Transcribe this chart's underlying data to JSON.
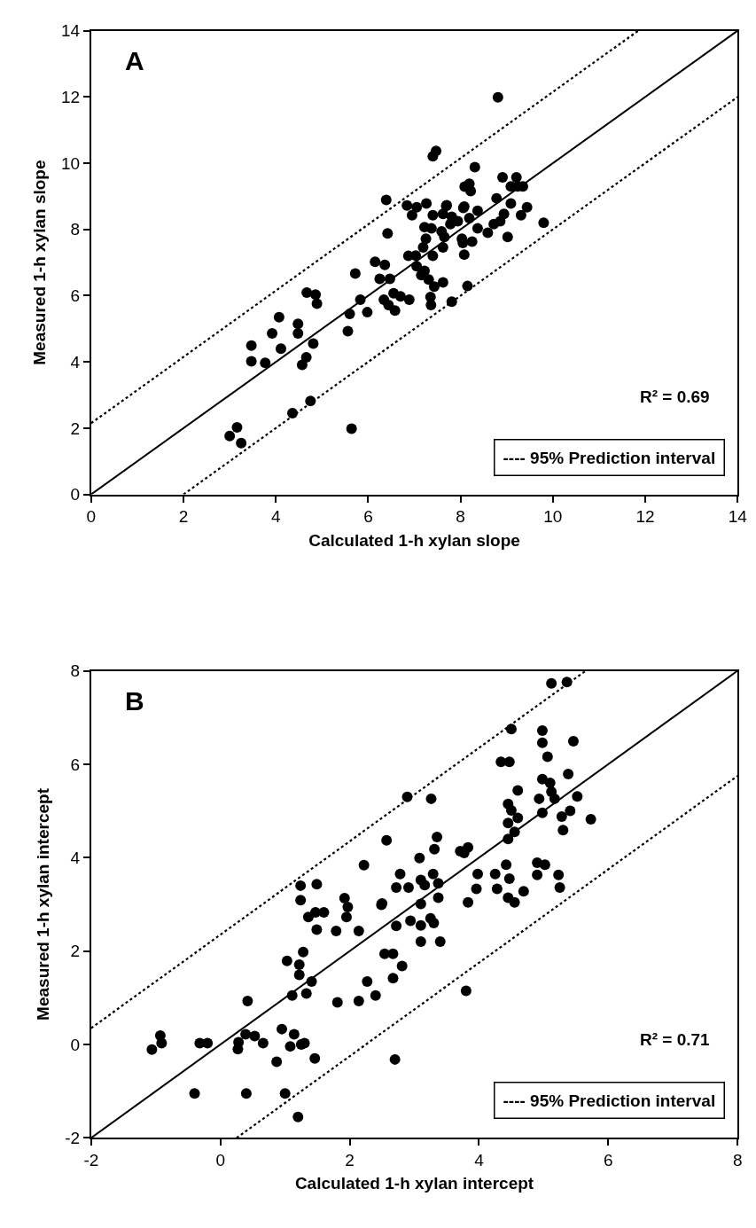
{
  "chart_data": [
    {
      "type": "scatter",
      "xlabel": "Calculated 1-h xylan slope",
      "ylabel": "Measured 1-h xylan slope",
      "xlim": [
        0,
        14
      ],
      "ylim": [
        0,
        14
      ],
      "xticks": [
        0,
        2,
        4,
        6,
        8,
        10,
        12,
        14
      ],
      "yticks": [
        0,
        2,
        4,
        6,
        8,
        10,
        12,
        14
      ],
      "grid": false,
      "annotations": [
        "A",
        "R² = 0.69",
        "---- 95% Prediction interval"
      ],
      "series": [
        {
          "marker": "circle",
          "color": "#000000",
          "x": [
            8.81,
            7.47,
            7.4,
            8.31,
            8.09,
            8.19,
            8.22,
            6.39,
            6.84,
            7.05,
            7.26,
            6.95,
            8.78,
            7.69,
            8.06,
            7.4,
            7.62,
            7.81,
            8.37,
            8.19,
            7.22,
            7.37,
            7.59,
            7.78,
            7.94,
            8.37,
            7.25,
            7.65,
            8.03,
            8.25,
            8.59,
            8.72,
            6.42,
            7.19,
            7.62,
            8.05,
            8.08,
            7.4,
            6.87,
            7.03,
            7.05,
            7.22,
            7.15,
            7.31,
            7.43,
            7.62,
            8.15,
            6.15,
            6.36,
            5.72,
            6.25,
            6.47,
            6.34,
            6.55,
            6.7,
            6.89,
            6.44,
            6.58,
            7.35,
            7.36,
            7.81,
            5.83,
            5.6,
            5.98,
            5.56,
            4.67,
            4.86,
            4.89,
            4.07,
            3.92,
            4.48,
            4.48,
            4.11,
            4.81,
            3.47,
            3.47,
            3.77,
            4.66,
            4.57,
            4.75,
            4.36,
            5.64,
            3.0,
            3.16,
            3.25,
            9.21,
            8.91,
            9.09,
            9.35,
            9.24,
            9.09,
            9.44,
            8.94,
            8.86,
            9.31,
            9.8,
            9.02,
            7.7,
            8.08
          ],
          "values": [
            11.99,
            10.37,
            10.21,
            9.88,
            9.29,
            9.38,
            9.16,
            8.89,
            8.72,
            8.67,
            8.78,
            8.43,
            8.94,
            8.71,
            8.65,
            8.43,
            8.47,
            8.38,
            8.56,
            8.34,
            8.07,
            8.03,
            7.94,
            8.16,
            8.25,
            8.03,
            7.72,
            7.77,
            7.72,
            7.63,
            7.9,
            8.16,
            7.88,
            7.46,
            7.46,
            7.59,
            7.24,
            7.2,
            7.2,
            7.21,
            6.89,
            6.75,
            6.62,
            6.49,
            6.27,
            6.4,
            6.29,
            7.02,
            6.93,
            6.67,
            6.51,
            6.51,
            5.88,
            6.07,
            5.98,
            5.88,
            5.72,
            5.55,
            5.96,
            5.72,
            5.82,
            5.88,
            5.45,
            5.5,
            4.93,
            6.09,
            6.03,
            5.76,
            5.35,
            4.86,
            5.15,
            4.86,
            4.4,
            4.55,
            4.49,
            4.02,
            3.97,
            4.14,
            3.91,
            2.82,
            2.45,
            1.98,
            1.76,
            2.02,
            1.55,
            9.57,
            9.57,
            9.3,
            9.3,
            9.3,
            8.78,
            8.67,
            8.47,
            8.25,
            8.43,
            8.2,
            7.77,
            8.73,
            8.69
          ]
        },
        {
          "type": "line",
          "marker": "none",
          "line_style": "solid",
          "color": "#000000",
          "x": [
            0,
            14
          ],
          "values": [
            0,
            14
          ]
        },
        {
          "type": "line",
          "marker": "none",
          "line_style": "dotted",
          "color": "#000000",
          "x": [
            0,
            11.85
          ],
          "values": [
            2.15,
            14
          ]
        },
        {
          "type": "line",
          "marker": "none",
          "line_style": "dotted",
          "color": "#000000",
          "x": [
            2.0,
            14
          ],
          "values": [
            0,
            12.0
          ]
        }
      ]
    },
    {
      "type": "scatter",
      "xlabel": "Calculated 1-h xylan intercept",
      "ylabel": "Measured 1-h xylan intercept",
      "xlim": [
        -2,
        8
      ],
      "ylim": [
        -2,
        8
      ],
      "xticks": [
        -2,
        0,
        2,
        4,
        6,
        8
      ],
      "yticks": [
        -2,
        0,
        2,
        4,
        6,
        8
      ],
      "grid": false,
      "annotations": [
        "B",
        "R² = 0.71",
        "---- 95% Prediction interval"
      ],
      "series": [
        {
          "marker": "circle",
          "color": "#000000",
          "x": [
            2.89,
            2.57,
            2.22,
            2.78,
            2.72,
            2.91,
            2.94,
            2.72,
            1.24,
            1.49,
            1.24,
            1.36,
            1.47,
            1.6,
            1.49,
            1.92,
            1.97,
            1.95,
            1.79,
            2.14,
            2.49,
            2.54,
            2.67,
            2.81,
            2.67,
            2.27,
            2.4,
            2.14,
            1.81,
            1.03,
            1.28,
            1.22,
            1.22,
            1.41,
            1.11,
            1.33,
            0.42,
            0.95,
            0.39,
            0.53,
            0.66,
            0.28,
            0.27,
            1.14,
            1.3,
            1.08,
            1.46,
            0.87,
            2.7,
            -0.93,
            -0.91,
            -1.06,
            -0.32,
            -0.2,
            -0.4,
            0.4,
            1.0,
            1.2,
            1.25,
            5.12,
            5.36,
            4.5,
            4.98,
            4.98,
            5.46,
            5.06,
            4.34,
            4.47,
            5.38,
            4.98,
            5.1,
            5.12,
            5.17,
            4.6,
            4.93,
            5.52,
            4.45,
            4.5,
            4.6,
            4.45,
            4.98,
            5.28,
            5.41,
            5.3,
            5.73,
            4.55,
            4.45,
            3.26,
            3.35,
            3.31,
            3.71,
            3.83,
            3.77,
            3.08,
            3.29,
            3.1,
            3.16,
            3.37,
            3.37,
            3.98,
            4.25,
            4.42,
            4.47,
            3.96,
            4.28,
            4.45,
            4.55,
            4.69,
            4.9,
            5.02,
            4.9,
            5.23,
            5.25,
            3.1,
            3.83,
            2.5,
            3.1,
            3.25,
            3.3,
            3.1,
            3.4,
            3.8
          ],
          "values": [
            5.3,
            4.37,
            3.84,
            3.65,
            3.36,
            3.36,
            2.65,
            2.54,
            3.4,
            3.43,
            3.09,
            2.73,
            2.83,
            2.83,
            2.46,
            3.13,
            2.94,
            2.73,
            2.43,
            2.43,
            2.99,
            1.94,
            1.94,
            1.68,
            1.42,
            1.35,
            1.05,
            0.93,
            0.9,
            1.79,
            1.98,
            1.71,
            1.49,
            1.35,
            1.05,
            1.09,
            0.93,
            0.33,
            0.22,
            0.18,
            0.03,
            0.05,
            -0.1,
            0.22,
            0.03,
            -0.04,
            -0.3,
            -0.37,
            -0.32,
            0.19,
            0.03,
            -0.11,
            0.03,
            0.03,
            -1.05,
            -1.05,
            -1.05,
            -1.55,
            0.0,
            7.73,
            7.76,
            6.75,
            6.72,
            6.46,
            6.49,
            6.16,
            6.05,
            6.05,
            5.79,
            5.68,
            5.6,
            5.41,
            5.26,
            5.44,
            5.26,
            5.31,
            5.15,
            5.01,
            4.85,
            4.74,
            4.96,
            4.88,
            5.0,
            4.59,
            4.82,
            4.55,
            4.4,
            5.26,
            4.44,
            4.18,
            4.14,
            4.22,
            4.1,
            3.99,
            3.65,
            3.52,
            3.41,
            3.45,
            3.14,
            3.65,
            3.65,
            3.85,
            3.55,
            3.33,
            3.33,
            3.14,
            3.04,
            3.28,
            3.89,
            3.85,
            3.63,
            3.63,
            3.36,
            3.01,
            3.04,
            3.02,
            2.55,
            2.7,
            2.6,
            2.2,
            2.2,
            1.15
          ]
        },
        {
          "type": "line",
          "marker": "none",
          "line_style": "solid",
          "color": "#000000",
          "x": [
            -2,
            8
          ],
          "values": [
            -2,
            8
          ]
        },
        {
          "type": "line",
          "marker": "none",
          "line_style": "dotted",
          "color": "#000000",
          "x": [
            -2,
            5.65
          ],
          "values": [
            0.35,
            8
          ]
        },
        {
          "type": "line",
          "marker": "none",
          "line_style": "dotted",
          "color": "#000000",
          "x": [
            0.25,
            8
          ],
          "values": [
            -2,
            5.75
          ]
        }
      ]
    }
  ]
}
